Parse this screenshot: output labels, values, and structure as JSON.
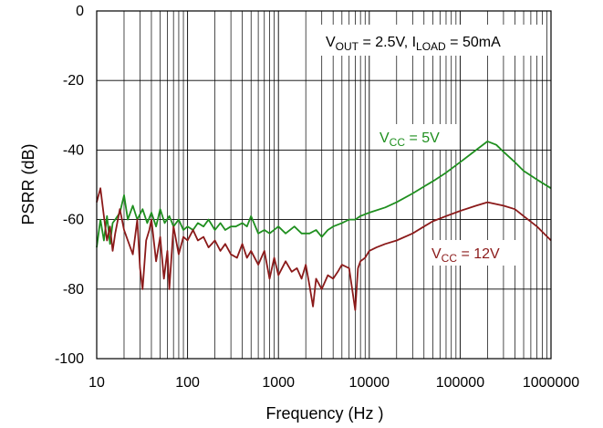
{
  "chart_data": {
    "type": "line",
    "xscale": "log",
    "xlim": [
      10,
      1000000
    ],
    "ylim": [
      -100,
      0
    ],
    "xlabel": "Frequency (Hz )",
    "ylabel": "PSRR (dB)",
    "xticks": [
      10,
      100,
      1000,
      10000,
      100000,
      1000000
    ],
    "xtick_labels": [
      "10",
      "100",
      "1000",
      "10000",
      "100000",
      "1000000"
    ],
    "yticks": [
      0,
      -20,
      -40,
      -60,
      -80,
      -100
    ],
    "ytick_labels": [
      "0",
      "-20",
      "-40",
      "-60",
      "-80",
      "-100"
    ],
    "grid": true,
    "annotation": {
      "parts": [
        {
          "t": "V",
          "sub": false
        },
        {
          "t": "OUT",
          "sub": true
        },
        {
          "t": " = 2.5V, I",
          "sub": false
        },
        {
          "t": "LOAD",
          "sub": true
        },
        {
          "t": " = 50mA",
          "sub": false
        }
      ]
    },
    "series": [
      {
        "name": "VCC = 5V",
        "label_parts": [
          {
            "t": "V",
            "sub": false
          },
          {
            "t": "CC",
            "sub": true
          },
          {
            "t": " = 5V",
            "sub": false
          }
        ],
        "color": "#1f8f1f",
        "x": [
          10,
          11,
          12,
          13,
          14,
          15,
          16,
          18,
          20,
          22,
          25,
          28,
          32,
          36,
          40,
          45,
          50,
          56,
          63,
          70,
          80,
          90,
          100,
          115,
          130,
          150,
          170,
          200,
          230,
          260,
          300,
          340,
          400,
          450,
          500,
          600,
          700,
          800,
          1000,
          1200,
          1500,
          1800,
          2200,
          2600,
          3000,
          3500,
          4000,
          5000,
          6000,
          7000,
          8000,
          10000,
          15000,
          20000,
          30000,
          40000,
          50000,
          70000,
          100000,
          150000,
          200000,
          250000,
          300000,
          400000,
          500000,
          700000,
          1000000
        ],
        "y": [
          -68,
          -60,
          -66,
          -59,
          -67,
          -61,
          -60,
          -58,
          -53,
          -60,
          -56,
          -60,
          -57,
          -61,
          -58,
          -62,
          -57,
          -61,
          -59,
          -62,
          -60,
          -63,
          -62,
          -63,
          -61,
          -62,
          -60,
          -63,
          -61,
          -63,
          -62,
          -62,
          -61,
          -62,
          -59,
          -64,
          -63,
          -64,
          -62,
          -64,
          -62,
          -64,
          -64,
          -63,
          -65,
          -63,
          -62,
          -61,
          -60,
          -60,
          -59,
          -58,
          -56.5,
          -55,
          -52.5,
          -50.5,
          -49,
          -46.5,
          -43.5,
          -40,
          -37.5,
          -38.5,
          -40.5,
          -43.5,
          -46,
          -48.5,
          -51
        ]
      },
      {
        "name": "VCC = 12V",
        "label_parts": [
          {
            "t": "V",
            "sub": false
          },
          {
            "t": "CC",
            "sub": true
          },
          {
            "t": " = 12V",
            "sub": false
          }
        ],
        "color": "#8b1a1a",
        "x": [
          10,
          11,
          12,
          13,
          14,
          15,
          16,
          18,
          20,
          22,
          25,
          28,
          30,
          32,
          35,
          38,
          40,
          45,
          50,
          55,
          60,
          63,
          70,
          80,
          90,
          100,
          115,
          130,
          150,
          170,
          200,
          230,
          260,
          300,
          350,
          400,
          450,
          500,
          600,
          700,
          800,
          900,
          1000,
          1200,
          1400,
          1600,
          1800,
          2000,
          2200,
          2400,
          2600,
          3000,
          3500,
          4000,
          4500,
          5000,
          6000,
          7000,
          7500,
          8000,
          9000,
          10000,
          12000,
          15000,
          20000,
          30000,
          40000,
          50000,
          70000,
          100000,
          150000,
          200000,
          300000,
          400000,
          500000,
          700000,
          1000000
        ],
        "y": [
          -55,
          -51,
          -59,
          -66,
          -62,
          -69,
          -64,
          -57,
          -63,
          -66,
          -70,
          -60,
          -74,
          -80,
          -66,
          -63,
          -60,
          -72,
          -65,
          -77,
          -69,
          -80,
          -62,
          -70,
          -65,
          -66,
          -63,
          -66,
          -65,
          -68,
          -66,
          -69,
          -67,
          -70,
          -71,
          -67,
          -71,
          -69,
          -73,
          -69,
          -77,
          -71,
          -76,
          -72,
          -75,
          -74,
          -77,
          -73,
          -79,
          -85,
          -77,
          -80,
          -76,
          -77,
          -75,
          -73,
          -74,
          -86,
          -74,
          -72,
          -71,
          -69,
          -68,
          -67,
          -66,
          -64,
          -62,
          -60.5,
          -59,
          -57.5,
          -56,
          -55,
          -56,
          -57,
          -59,
          -62,
          -66
        ]
      }
    ]
  }
}
